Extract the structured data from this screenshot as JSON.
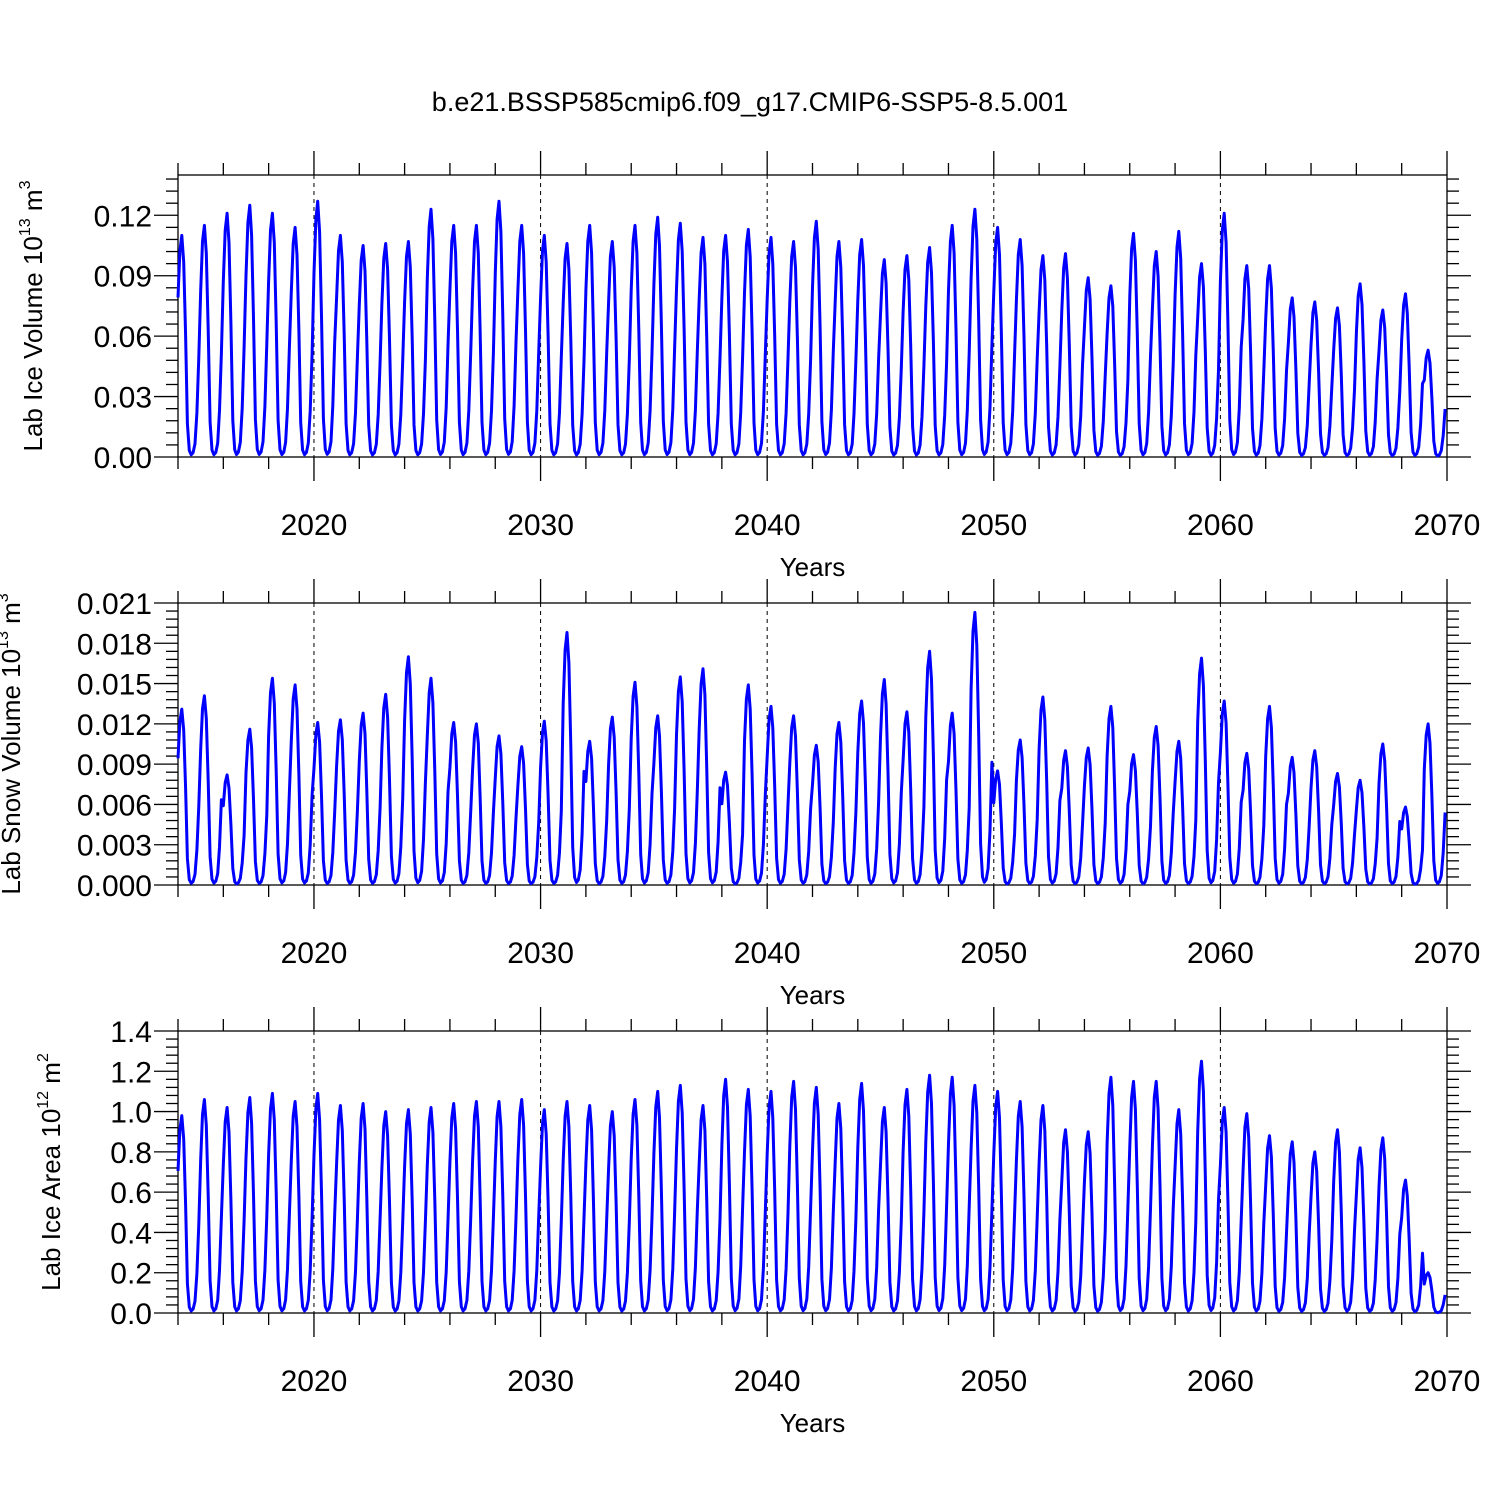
{
  "title": "b.e21.BSSP585cmip6.f09_g17.CMIP6-SSP5-8.5.001",
  "xlabel": "Years",
  "colors": {
    "series": "#0000ff",
    "axes": "#000000"
  },
  "panels": [
    {
      "ylabel": "Lab Ice Volume 10",
      "ylabel_sup": "13",
      "ylabel_unit": " m",
      "ylabel_unit_sup": "3"
    },
    {
      "ylabel": "Lab Snow Volume 10",
      "ylabel_sup": "13",
      "ylabel_unit": " m",
      "ylabel_unit_sup": "3"
    },
    {
      "ylabel": "Lab Ice Area 10",
      "ylabel_sup": "12",
      "ylabel_unit": " m",
      "ylabel_unit_sup": "2"
    }
  ],
  "chart_data": [
    {
      "type": "line",
      "ylim": [
        0,
        0.14
      ],
      "xlim": [
        2014,
        2070
      ],
      "xticks": [
        "2020",
        "2030",
        "2040",
        "2050",
        "2060",
        "2070"
      ],
      "yticks": [
        "0.00",
        "0.03",
        "0.06",
        "0.09",
        "0.12"
      ],
      "reference_lines_x": [
        2020,
        2030,
        2040,
        2050,
        2060
      ],
      "series_shape": "monthly seasonal cycle, values read as annual maxima (minimum near 0)",
      "series": [
        {
          "year_start": 2014,
          "annual_max": [
            0.11,
            0.115,
            0.121,
            0.125,
            0.121,
            0.114,
            0.127,
            0.11,
            0.105,
            0.106,
            0.107,
            0.123,
            0.115,
            0.115,
            0.127,
            0.115,
            0.11,
            0.106,
            0.115,
            0.107,
            0.115,
            0.119,
            0.116,
            0.109,
            0.11,
            0.113,
            0.109,
            0.107,
            0.117,
            0.107,
            0.108,
            0.098,
            0.1,
            0.104,
            0.115,
            0.123,
            0.114,
            0.108,
            0.1,
            0.101,
            0.089,
            0.085,
            0.111,
            0.102,
            0.112,
            0.096,
            0.121,
            0.095,
            0.095,
            0.079,
            0.077,
            0.074,
            0.086,
            0.073,
            0.081,
            0.053
          ]
        }
      ]
    },
    {
      "type": "line",
      "ylim": [
        0,
        0.021
      ],
      "xlim": [
        2014,
        2070
      ],
      "xticks": [
        "2020",
        "2030",
        "2040",
        "2050",
        "2060",
        "2070"
      ],
      "yticks": [
        "0.000",
        "0.003",
        "0.006",
        "0.009",
        "0.012",
        "0.015",
        "0.018",
        "0.021"
      ],
      "reference_lines_x": [
        2020,
        2030,
        2040,
        2050,
        2060
      ],
      "series_shape": "monthly seasonal cycle, values read as annual maxima (minimum near 0)",
      "series": [
        {
          "year_start": 2014,
          "annual_max": [
            0.0131,
            0.0141,
            0.0082,
            0.0116,
            0.0154,
            0.0149,
            0.0121,
            0.0123,
            0.0128,
            0.0142,
            0.017,
            0.0154,
            0.0121,
            0.012,
            0.0111,
            0.0103,
            0.0122,
            0.0188,
            0.0107,
            0.0125,
            0.0151,
            0.0126,
            0.0155,
            0.0161,
            0.0084,
            0.0149,
            0.0133,
            0.0126,
            0.0104,
            0.0121,
            0.0137,
            0.0153,
            0.0129,
            0.0174,
            0.0128,
            0.0203,
            0.0085,
            0.0108,
            0.014,
            0.01,
            0.0102,
            0.0133,
            0.0097,
            0.0118,
            0.0107,
            0.0169,
            0.0137,
            0.0098,
            0.0133,
            0.0095,
            0.01,
            0.0083,
            0.0078,
            0.0105,
            0.0058,
            0.012
          ]
        }
      ]
    },
    {
      "type": "line",
      "ylim": [
        0,
        1.4
      ],
      "xlim": [
        2014,
        2070
      ],
      "xticks": [
        "2020",
        "2030",
        "2040",
        "2050",
        "2060",
        "2070"
      ],
      "yticks": [
        "0.0",
        "0.2",
        "0.4",
        "0.6",
        "0.8",
        "1.0",
        "1.2",
        "1.4"
      ],
      "reference_lines_x": [
        2020,
        2030,
        2040,
        2050,
        2060
      ],
      "series_shape": "monthly seasonal cycle, values read as annual maxima (minimum near 0)",
      "series": [
        {
          "year_start": 2014,
          "annual_max": [
            0.98,
            1.06,
            1.02,
            1.07,
            1.09,
            1.05,
            1.09,
            1.03,
            1.04,
            1.0,
            1.01,
            1.02,
            1.04,
            1.05,
            1.05,
            1.06,
            1.01,
            1.05,
            1.03,
            1.0,
            1.06,
            1.1,
            1.13,
            1.03,
            1.16,
            1.11,
            1.1,
            1.15,
            1.12,
            1.04,
            1.14,
            1.02,
            1.11,
            1.18,
            1.17,
            1.13,
            1.1,
            1.05,
            1.03,
            0.91,
            0.9,
            1.17,
            1.15,
            1.15,
            1.01,
            1.25,
            1.02,
            0.99,
            0.88,
            0.85,
            0.8,
            0.91,
            0.82,
            0.87,
            0.66,
            0.2
          ]
        }
      ]
    }
  ]
}
